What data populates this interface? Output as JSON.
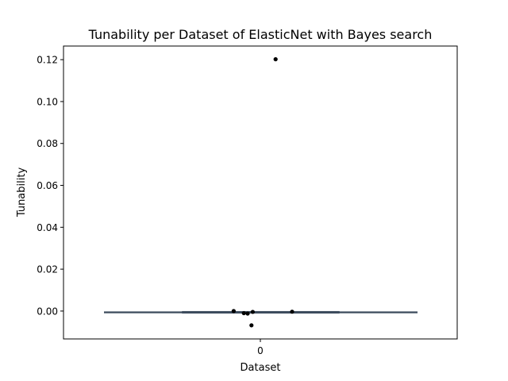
{
  "chart_data": {
    "type": "box",
    "title": "Tunability per Dataset of ElasticNet with Bayes search",
    "xlabel": "Dataset",
    "ylabel": "Tunability",
    "categories": [
      "0"
    ],
    "ylim": [
      -0.0133,
      0.1265
    ],
    "yticks": [
      0.0,
      0.02,
      0.04,
      0.06,
      0.08,
      0.1,
      0.12
    ],
    "ytick_labels": [
      "0.00",
      "0.02",
      "0.04",
      "0.06",
      "0.08",
      "0.10",
      "0.12"
    ],
    "grid": false,
    "box": {
      "q1": -0.0008,
      "median": -0.0006,
      "q3": -0.0003,
      "whisker_low": -0.001,
      "whisker_high": -0.0002,
      "color": "#3b4a5c"
    },
    "points": [
      {
        "x": 0.12,
        "y": 0.1202
      },
      {
        "x": -0.21,
        "y": 0.0
      },
      {
        "x": -0.13,
        "y": -0.001
      },
      {
        "x": -0.1,
        "y": -0.0012
      },
      {
        "x": -0.06,
        "y": -0.0004
      },
      {
        "x": -0.07,
        "y": -0.0068
      },
      {
        "x": 0.25,
        "y": -0.0003
      }
    ],
    "point_color": "#000000"
  }
}
